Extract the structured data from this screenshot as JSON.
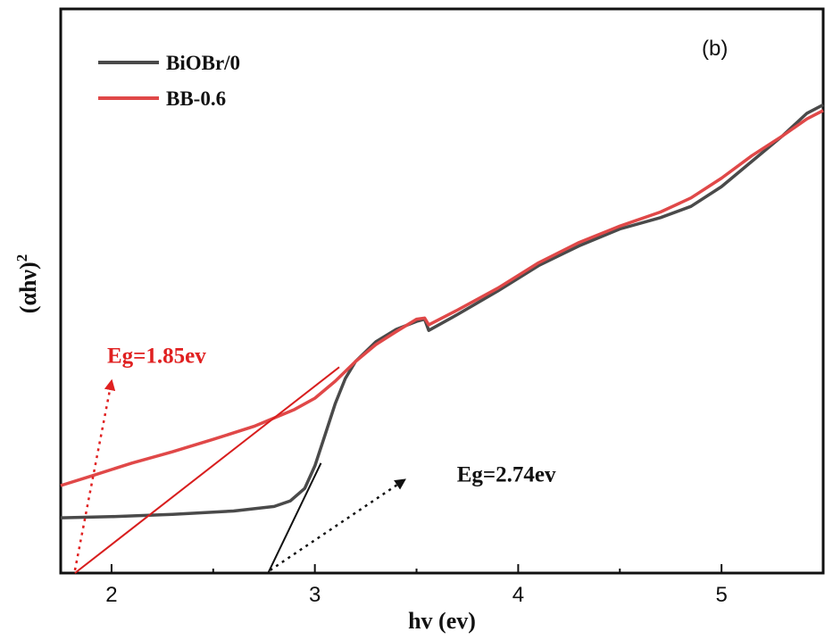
{
  "chart_data": {
    "type": "line",
    "panel_label": "(b)",
    "xlabel": "hv (ev)",
    "ylabel_base": "(αhν)",
    "ylabel_sup": "2",
    "xlim": [
      1.75,
      5.5
    ],
    "ylim": [
      0,
      1
    ],
    "xticks": [
      2,
      3,
      4,
      5
    ],
    "xtick_labels": [
      "2",
      "3",
      "4",
      "5"
    ],
    "y_tick_labels_shown": false,
    "grid": false,
    "legend_position": "top-left",
    "series": [
      {
        "name": "BiOBr/0",
        "color": "#4a4a4a",
        "points": [
          [
            1.75,
            0.098
          ],
          [
            2.0,
            0.1
          ],
          [
            2.3,
            0.104
          ],
          [
            2.6,
            0.11
          ],
          [
            2.8,
            0.118
          ],
          [
            2.88,
            0.128
          ],
          [
            2.95,
            0.15
          ],
          [
            3.0,
            0.19
          ],
          [
            3.05,
            0.245
          ],
          [
            3.1,
            0.3
          ],
          [
            3.15,
            0.345
          ],
          [
            3.2,
            0.375
          ],
          [
            3.3,
            0.41
          ],
          [
            3.4,
            0.432
          ],
          [
            3.5,
            0.446
          ],
          [
            3.54,
            0.45
          ],
          [
            3.56,
            0.43
          ],
          [
            3.7,
            0.458
          ],
          [
            3.9,
            0.5
          ],
          [
            4.1,
            0.545
          ],
          [
            4.3,
            0.58
          ],
          [
            4.5,
            0.61
          ],
          [
            4.7,
            0.63
          ],
          [
            4.85,
            0.65
          ],
          [
            5.0,
            0.685
          ],
          [
            5.15,
            0.73
          ],
          [
            5.3,
            0.775
          ],
          [
            5.42,
            0.815
          ],
          [
            5.5,
            0.83
          ]
        ]
      },
      {
        "name": "BB-0.6",
        "color": "#e04848",
        "points": [
          [
            1.75,
            0.155
          ],
          [
            1.9,
            0.172
          ],
          [
            2.1,
            0.195
          ],
          [
            2.3,
            0.215
          ],
          [
            2.5,
            0.237
          ],
          [
            2.7,
            0.26
          ],
          [
            2.9,
            0.29
          ],
          [
            3.0,
            0.31
          ],
          [
            3.1,
            0.34
          ],
          [
            3.2,
            0.375
          ],
          [
            3.3,
            0.405
          ],
          [
            3.4,
            0.428
          ],
          [
            3.5,
            0.45
          ],
          [
            3.54,
            0.452
          ],
          [
            3.56,
            0.44
          ],
          [
            3.7,
            0.466
          ],
          [
            3.9,
            0.505
          ],
          [
            4.1,
            0.55
          ],
          [
            4.3,
            0.586
          ],
          [
            4.5,
            0.615
          ],
          [
            4.7,
            0.64
          ],
          [
            4.85,
            0.665
          ],
          [
            5.0,
            0.7
          ],
          [
            5.15,
            0.74
          ],
          [
            5.3,
            0.775
          ],
          [
            5.42,
            0.805
          ],
          [
            5.5,
            0.82
          ]
        ]
      }
    ],
    "tangents": [
      {
        "color": "#d81e1e",
        "from": [
          1.82,
          0.0
        ],
        "to": [
          3.12,
          0.365
        ]
      },
      {
        "color": "#111111",
        "from": [
          2.77,
          0.0
        ],
        "to": [
          3.03,
          0.195
        ]
      }
    ],
    "annotations": [
      {
        "text": "Eg=1.85ev",
        "color": "#e02020",
        "text_at": [
          1.75,
          0.385
        ],
        "arrow_from": [
          1.82,
          0.005
        ],
        "arrow_to": [
          2.0,
          0.34
        ]
      },
      {
        "text": "Eg=2.74ev",
        "color": "#111111",
        "text_at": [
          3.47,
          0.175
        ],
        "arrow_from": [
          2.78,
          0.005
        ],
        "arrow_to": [
          3.44,
          0.165
        ]
      }
    ]
  }
}
